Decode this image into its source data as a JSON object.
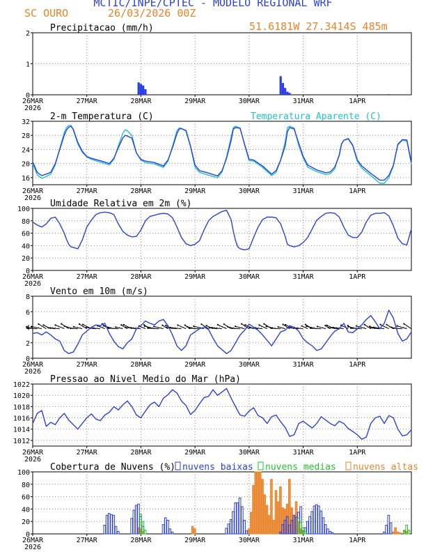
{
  "header": {
    "title": "MCTIC/INPE/CPTEC - MODELO REGIONAL WRF",
    "site": "SC OURO",
    "run_date": "26/03/2026 00Z",
    "coordinates": "51.6181W 27.3414S 485m"
  },
  "time_axis": {
    "start": "26MAR 2026 00Z",
    "step_hours": 1,
    "range_hours": [
      0,
      168
    ],
    "ticks": [
      {
        "hour": 0,
        "label": "26MAR",
        "sublabel": "2026"
      },
      {
        "hour": 24,
        "label": "27MAR",
        "sublabel": ""
      },
      {
        "hour": 48,
        "label": "28MAR",
        "sublabel": ""
      },
      {
        "hour": 72,
        "label": "29MAR",
        "sublabel": ""
      },
      {
        "hour": 96,
        "label": "30MAR",
        "sublabel": ""
      },
      {
        "hour": 120,
        "label": "31MAR",
        "sublabel": ""
      },
      {
        "hour": 144,
        "label": "1APR",
        "sublabel": ""
      }
    ]
  },
  "colors": {
    "title": "#2b3fe0",
    "header_orange": "#e8842a",
    "series_blue": "#2b3fe0",
    "apparent_cyan": "#1fc0cc",
    "low_clouds": "#2b3fe0",
    "mid_clouds": "#22c42a",
    "high_clouds": "#e8842a",
    "wind_arrows": "#000000"
  },
  "chart_data": [
    {
      "id": "precip",
      "type": "bar",
      "title": "Precipitacao (mm/h)",
      "ylim": [
        0,
        2
      ],
      "yticks": [
        "0",
        "1",
        "2"
      ],
      "x_hours": [
        47,
        48,
        49,
        50,
        110,
        111,
        112,
        113,
        114,
        158
      ],
      "values": [
        0.4,
        0.35,
        0.3,
        0.18,
        0.6,
        0.38,
        0.22,
        0.1,
        0.06,
        0.02
      ]
    },
    {
      "id": "temperature",
      "type": "line",
      "title": "2-m Temperatura (C)",
      "legend_extra": "Temperatura Aparente (C)",
      "ylim": [
        14,
        32
      ],
      "yticks": [
        "16",
        "20",
        "24",
        "28",
        "32"
      ],
      "x_hours": [
        0,
        2,
        4,
        6,
        8,
        10,
        12,
        14,
        15,
        16,
        17,
        18,
        20,
        22,
        24,
        26,
        30,
        34,
        36,
        38,
        40,
        41,
        42,
        44,
        46,
        48,
        50,
        54,
        58,
        60,
        62,
        64,
        65,
        66,
        68,
        70,
        72,
        74,
        78,
        82,
        84,
        86,
        88,
        89,
        90,
        92,
        94,
        96,
        98,
        102,
        106,
        108,
        110,
        112,
        113,
        114,
        116,
        118,
        120,
        122,
        126,
        130,
        132,
        134,
        136,
        137,
        138,
        140,
        142,
        144,
        146,
        150,
        154,
        156,
        158,
        160,
        161,
        162,
        164,
        166,
        168
      ],
      "series": [
        {
          "name": "2-m Temperatura (C)",
          "values": [
            20.5,
            17.5,
            16.6,
            17.0,
            17.5,
            20.0,
            24.0,
            28.0,
            29.5,
            30.3,
            30.6,
            29.7,
            26.0,
            23.5,
            22.0,
            21.5,
            20.8,
            20.0,
            21.5,
            24.5,
            27.3,
            28.0,
            27.8,
            27.2,
            23.0,
            21.2,
            20.7,
            20.3,
            19.3,
            21.0,
            24.5,
            28.5,
            29.8,
            29.9,
            29.4,
            25.0,
            19.6,
            18.0,
            17.3,
            16.5,
            18.0,
            21.5,
            26.5,
            29.8,
            30.2,
            30.0,
            25.5,
            21.2,
            21.0,
            19.3,
            17.0,
            18.0,
            21.0,
            25.0,
            29.0,
            30.2,
            29.8,
            25.8,
            22.0,
            19.6,
            18.2,
            17.4,
            17.6,
            19.0,
            22.3,
            25.5,
            26.6,
            27.1,
            25.2,
            21.0,
            19.3,
            17.2,
            15.3,
            15.3,
            16.6,
            19.5,
            22.5,
            25.5,
            26.8,
            26.7,
            20.3
          ]
        },
        {
          "name": "Temperatura Aparente (C)",
          "values": [
            20.0,
            16.8,
            15.8,
            16.3,
            17.0,
            19.6,
            24.3,
            28.8,
            30.2,
            30.8,
            30.8,
            29.5,
            25.6,
            23.2,
            21.9,
            21.2,
            20.4,
            19.6,
            21.2,
            25.0,
            28.6,
            29.6,
            29.3,
            28.0,
            23.0,
            21.0,
            20.3,
            19.9,
            18.9,
            20.7,
            24.9,
            29.3,
            30.1,
            30.0,
            29.2,
            24.8,
            19.0,
            17.5,
            16.7,
            16.0,
            17.6,
            21.9,
            27.5,
            30.2,
            30.6,
            30.1,
            25.3,
            20.8,
            20.7,
            18.9,
            16.6,
            17.5,
            21.0,
            26.2,
            30.2,
            30.6,
            30.1,
            25.2,
            21.6,
            19.0,
            17.7,
            16.9,
            17.1,
            18.5,
            22.6,
            25.6,
            26.6,
            27.0,
            25.0,
            20.6,
            18.7,
            16.6,
            14.4,
            14.4,
            16.0,
            19.3,
            22.3,
            25.3,
            26.6,
            26.4,
            19.8
          ]
        }
      ]
    },
    {
      "id": "humidity",
      "type": "line",
      "title": "Umidade Relativa em 2m (%)",
      "ylim": [
        0,
        100
      ],
      "yticks": [
        "0",
        "20",
        "40",
        "60",
        "80",
        "100"
      ],
      "x_hours": [
        0,
        2,
        4,
        6,
        8,
        10,
        12,
        14,
        15,
        16,
        17,
        18,
        20,
        22,
        24,
        26,
        28,
        30,
        32,
        34,
        36,
        38,
        40,
        42,
        44,
        46,
        48,
        50,
        52,
        54,
        56,
        58,
        60,
        62,
        64,
        66,
        68,
        70,
        72,
        74,
        76,
        78,
        80,
        82,
        84,
        86,
        88,
        89,
        90,
        91,
        92,
        94,
        96,
        98,
        100,
        102,
        104,
        106,
        108,
        110,
        112,
        113,
        114,
        116,
        118,
        120,
        122,
        124,
        126,
        128,
        130,
        132,
        134,
        136,
        138,
        140,
        142,
        144,
        146,
        148,
        150,
        152,
        154,
        156,
        158,
        160,
        162,
        164,
        166,
        168
      ],
      "series": [
        {
          "name": "Umidade Relativa em 2m (%)",
          "values": [
            78,
            73,
            70,
            75,
            84,
            86,
            75,
            60,
            50,
            42,
            38,
            37,
            35,
            49,
            70,
            81,
            90,
            93,
            94,
            93,
            90,
            75,
            63,
            57,
            54,
            55,
            65,
            80,
            87,
            89,
            91,
            92,
            91,
            85,
            70,
            53,
            43,
            40,
            42,
            48,
            65,
            80,
            87,
            91,
            95,
            97,
            82,
            63,
            48,
            38,
            35,
            33,
            35,
            53,
            70,
            82,
            86,
            86,
            85,
            75,
            55,
            42,
            40,
            38,
            40,
            45,
            53,
            67,
            81,
            87,
            92,
            93,
            92,
            86,
            70,
            57,
            53,
            53,
            62,
            78,
            89,
            92,
            92,
            93,
            88,
            72,
            52,
            43,
            41,
            67
          ]
        }
      ]
    },
    {
      "id": "wind",
      "type": "line",
      "title": "Vento em 10m (m/s)",
      "ylim": [
        0,
        8
      ],
      "yticks": [
        "0",
        "2",
        "4",
        "6",
        "8"
      ],
      "barbs_at_y": 3.8,
      "barbs_every_hours": 2,
      "x_hours": [
        0,
        2,
        4,
        6,
        8,
        10,
        12,
        14,
        16,
        18,
        20,
        22,
        24,
        26,
        28,
        30,
        32,
        34,
        36,
        38,
        40,
        42,
        44,
        46,
        48,
        50,
        52,
        54,
        56,
        58,
        60,
        62,
        64,
        66,
        68,
        70,
        72,
        74,
        76,
        78,
        80,
        82,
        84,
        86,
        88,
        90,
        92,
        94,
        96,
        98,
        100,
        102,
        104,
        106,
        108,
        110,
        112,
        114,
        116,
        118,
        120,
        122,
        124,
        126,
        128,
        130,
        132,
        134,
        136,
        138,
        140,
        142,
        144,
        146,
        148,
        150,
        152,
        154,
        156,
        158,
        160,
        162,
        164,
        166,
        168
      ],
      "series": [
        {
          "name": "Vento em 10m (m/s)",
          "values": [
            3.2,
            3.3,
            3.0,
            3.4,
            3.0,
            2.5,
            2.2,
            1.0,
            0.6,
            0.8,
            1.8,
            3.0,
            3.5,
            4.0,
            4.3,
            4.2,
            4.5,
            3.2,
            2.2,
            1.5,
            1.2,
            2.0,
            2.5,
            3.8,
            4.2,
            4.8,
            4.5,
            4.3,
            4.8,
            5.0,
            4.2,
            3.0,
            1.6,
            1.0,
            1.6,
            3.0,
            3.4,
            3.8,
            4.0,
            3.7,
            2.6,
            1.6,
            1.1,
            0.6,
            1.0,
            2.0,
            3.0,
            3.6,
            4.4,
            4.0,
            3.6,
            3.0,
            2.3,
            1.6,
            2.5,
            3.4,
            3.6,
            4.2,
            4.0,
            3.5,
            2.5,
            2.0,
            1.6,
            1.0,
            1.2,
            2.0,
            2.8,
            3.5,
            3.8,
            4.5,
            3.4,
            3.3,
            3.8,
            4.3,
            5.0,
            5.5,
            4.7,
            3.8,
            4.5,
            6.2,
            5.2,
            3.2,
            2.2,
            2.5,
            3.4
          ]
        }
      ]
    },
    {
      "id": "pressure",
      "type": "line",
      "title": "Pressao ao Nivel Medio do Mar (hPa)",
      "ylim": [
        1011,
        1022
      ],
      "yticks": [
        "1012",
        "1014",
        "1016",
        "1018",
        "1020",
        "1022"
      ],
      "x_hours": [
        0,
        2,
        4,
        6,
        8,
        10,
        12,
        14,
        16,
        18,
        20,
        22,
        24,
        26,
        28,
        30,
        32,
        34,
        36,
        38,
        40,
        42,
        44,
        46,
        48,
        50,
        52,
        54,
        56,
        58,
        60,
        62,
        64,
        66,
        68,
        70,
        72,
        74,
        76,
        78,
        80,
        82,
        84,
        86,
        88,
        90,
        92,
        94,
        96,
        98,
        100,
        102,
        104,
        106,
        108,
        110,
        112,
        114,
        116,
        118,
        120,
        122,
        124,
        126,
        128,
        130,
        132,
        134,
        136,
        138,
        140,
        142,
        144,
        146,
        148,
        150,
        152,
        154,
        156,
        158,
        160,
        162,
        164,
        166,
        168
      ],
      "series": [
        {
          "name": "Pressao ao Nivel Medio do Mar (hPa)",
          "values": [
            1015.0,
            1016.8,
            1017.3,
            1014.5,
            1015.2,
            1014.8,
            1016.0,
            1016.8,
            1015.6,
            1014.8,
            1014.0,
            1015.0,
            1016.0,
            1016.7,
            1015.8,
            1015.5,
            1016.5,
            1017.0,
            1018.0,
            1017.4,
            1018.3,
            1019.0,
            1018.0,
            1016.5,
            1016.0,
            1017.2,
            1018.3,
            1018.8,
            1018.0,
            1019.5,
            1020.1,
            1021.0,
            1020.4,
            1019.0,
            1018.2,
            1016.6,
            1017.3,
            1018.5,
            1019.6,
            1019.8,
            1021.0,
            1020.0,
            1020.6,
            1021.2,
            1019.5,
            1018.0,
            1016.5,
            1016.3,
            1017.2,
            1017.8,
            1016.4,
            1016.0,
            1015.0,
            1016.2,
            1016.5,
            1015.3,
            1014.3,
            1012.7,
            1013.0,
            1015.0,
            1015.4,
            1014.8,
            1014.2,
            1015.0,
            1016.2,
            1015.6,
            1015.0,
            1014.6,
            1015.4,
            1015.0,
            1014.1,
            1013.6,
            1013.0,
            1012.2,
            1012.6,
            1015.0,
            1016.0,
            1016.3,
            1015.0,
            1016.4,
            1016.0,
            1014.0,
            1012.8,
            1013.0,
            1013.9
          ]
        }
      ]
    },
    {
      "id": "clouds",
      "type": "bar",
      "title": "Cobertura de Nuvens (%)",
      "legend": [
        "nuvens baixas",
        "nuvens medias",
        "nuvens altas"
      ],
      "ylim": [
        0,
        100
      ],
      "yticks": [
        "0",
        "20",
        "40",
        "60",
        "80",
        "100"
      ],
      "series": [
        {
          "name": "nuvens baixas",
          "x_hours": [
            32,
            33,
            34,
            35,
            36,
            37,
            38,
            44,
            45,
            46,
            47,
            48,
            49,
            58,
            59,
            60,
            61,
            62,
            86,
            87,
            88,
            89,
            90,
            91,
            92,
            93,
            94,
            95,
            110,
            111,
            112,
            113,
            114,
            115,
            116,
            117,
            118,
            119,
            120,
            121,
            122,
            123,
            124,
            125,
            126,
            127,
            128,
            129,
            130,
            131,
            132,
            133,
            156,
            157,
            158,
            159
          ],
          "values": [
            14,
            30,
            33,
            31,
            30,
            12,
            4,
            25,
            38,
            46,
            48,
            28,
            12,
            15,
            26,
            22,
            8,
            3,
            9,
            16,
            23,
            36,
            50,
            50,
            58,
            44,
            22,
            5,
            3,
            15,
            22,
            28,
            14,
            22,
            30,
            27,
            35,
            44,
            5,
            10,
            20,
            28,
            36,
            45,
            47,
            45,
            37,
            26,
            15,
            8,
            4,
            2,
            3,
            14,
            30,
            18
          ]
        },
        {
          "name": "nuvens medias",
          "x_hours": [
            48,
            49,
            50,
            118,
            119,
            120,
            121,
            165,
            166,
            167
          ],
          "values": [
            32,
            20,
            6,
            25,
            18,
            10,
            4,
            5,
            14,
            6
          ]
        },
        {
          "name": "nuvens altas",
          "x_hours": [
            47,
            48,
            49,
            71,
            72,
            96,
            97,
            98,
            99,
            100,
            101,
            102,
            103,
            104,
            105,
            106,
            107,
            108,
            109,
            110,
            111,
            112,
            113,
            114,
            115,
            116,
            117,
            118,
            119,
            120,
            160,
            161,
            162,
            163,
            165,
            166
          ],
          "values": [
            10,
            8,
            4,
            12,
            8,
            8,
            35,
            78,
            100,
            100,
            100,
            88,
            63,
            46,
            30,
            88,
            22,
            70,
            52,
            76,
            42,
            40,
            48,
            88,
            42,
            30,
            52,
            20,
            8,
            4,
            3,
            10,
            3,
            2,
            6,
            4
          ]
        }
      ]
    }
  ]
}
